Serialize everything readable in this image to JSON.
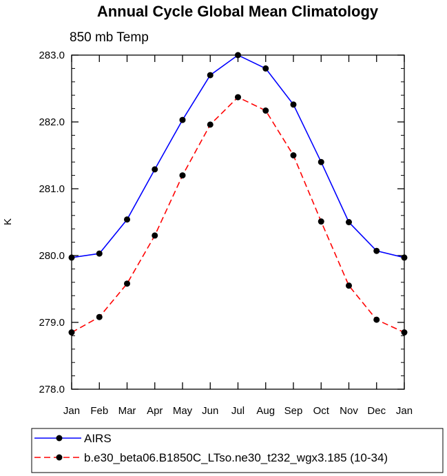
{
  "chart_data": {
    "type": "line",
    "title": "Annual Cycle Global Mean Climatology",
    "subtitle": "850 mb Temp",
    "xlabel": "",
    "ylabel": "K",
    "categories": [
      "Jan",
      "Feb",
      "Mar",
      "Apr",
      "May",
      "Jun",
      "Jul",
      "Aug",
      "Sep",
      "Oct",
      "Nov",
      "Dec",
      "Jan"
    ],
    "ylim": [
      278.0,
      283.0
    ],
    "yticks": [
      "278.0",
      "279.0",
      "280.0",
      "281.0",
      "282.0",
      "283.0"
    ],
    "series": [
      {
        "name": "AIRS",
        "color": "#0000ff",
        "line_style": "solid",
        "values": [
          279.97,
          280.03,
          280.54,
          281.29,
          282.03,
          282.7,
          283.0,
          282.8,
          282.26,
          281.4,
          280.5,
          280.07,
          279.97
        ]
      },
      {
        "name": "b.e30_beta06.B1850C_LTso.ne30_t232_wgx3.185 (10-34)",
        "color": "#ff0000",
        "line_style": "dashed",
        "values": [
          278.85,
          279.08,
          279.58,
          280.3,
          281.2,
          281.96,
          282.37,
          282.17,
          281.5,
          280.51,
          279.55,
          279.04,
          278.85
        ]
      }
    ],
    "grid": false,
    "legend_position": "bottom"
  }
}
